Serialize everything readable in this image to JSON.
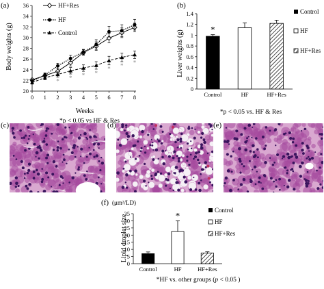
{
  "panels": {
    "a": "(a)",
    "b": "(b)",
    "c": "(c)",
    "d": "(d)",
    "e": "(e)",
    "f": "(f)"
  },
  "chart_data": [
    {
      "id": "a",
      "type": "line",
      "xlabel": "Weeks",
      "ylabel": "Body weights (g)",
      "x": [
        0,
        1,
        2,
        3,
        4,
        5,
        6,
        7,
        8
      ],
      "xlim": [
        0,
        8
      ],
      "ylim": [
        20,
        36
      ],
      "yticks": [
        20,
        22,
        24,
        26,
        28,
        30,
        32,
        34,
        36
      ],
      "series": [
        {
          "name": "HF+Res",
          "marker": "diamond-open",
          "line": "solid",
          "values": [
            22.1,
            22.9,
            23.7,
            25.3,
            27.2,
            28.4,
            29.9,
            30.9,
            31.9
          ],
          "errors": [
            0.3,
            0.4,
            0.5,
            0.6,
            0.5,
            0.8,
            0.9,
            0.9,
            0.8
          ]
        },
        {
          "name": "HF",
          "marker": "circle-filled",
          "line": "dotted",
          "values": [
            21.9,
            23.0,
            24.7,
            26.1,
            27.3,
            28.7,
            31.1,
            31.3,
            32.4
          ],
          "errors": [
            0.3,
            0.4,
            0.5,
            0.6,
            0.5,
            0.9,
            1.0,
            1.1,
            1.0
          ]
        },
        {
          "name": "Control",
          "marker": "triangle-filled",
          "line": "dashed",
          "values": [
            21.6,
            22.5,
            23.1,
            23.8,
            24.3,
            24.8,
            25.7,
            26.3,
            26.8
          ],
          "errors": [
            0.3,
            0.4,
            0.5,
            0.6,
            0.6,
            0.7,
            0.8,
            0.8,
            0.7
          ]
        }
      ],
      "significance_marks": {
        "symbol": "*",
        "weeks": [
          2,
          3,
          4,
          5,
          6,
          7,
          8
        ]
      },
      "footnote": "*p < 0.05 vs HF & Res"
    },
    {
      "id": "b",
      "type": "bar",
      "ylabel": "Liver weights (g)",
      "categories": [
        "Control",
        "HF",
        "HF+Res"
      ],
      "values": [
        0.98,
        1.14,
        1.22
      ],
      "errors": [
        0.03,
        0.09,
        0.06
      ],
      "ylim": [
        0,
        1.4
      ],
      "yticks": [
        "0",
        "0.2",
        "0.4",
        "0.6",
        "0.8",
        "1",
        "1.2",
        "1.4"
      ],
      "fills": [
        "solid-black",
        "white",
        "hatched"
      ],
      "legend": [
        "Control",
        "HF",
        "HF+Res"
      ],
      "significance": {
        "category": "Control",
        "symbol": "*"
      },
      "footnote": "*p < 0.05 vs.  HF & Res"
    },
    {
      "id": "f",
      "type": "bar",
      "ylabel": "Lipid droplet size",
      "unit": "(μm²/LD)",
      "categories": [
        "Control",
        "HF",
        "HF+Res"
      ],
      "values": [
        7.0,
        22.5,
        7.5
      ],
      "errors": [
        1.2,
        7.5,
        0.8
      ],
      "ylim": [
        0,
        35
      ],
      "yticks": [
        "0",
        "5",
        "10",
        "15",
        "20",
        "25",
        "30",
        "35"
      ],
      "fills": [
        "solid-black",
        "white",
        "hatched"
      ],
      "legend": [
        "Control",
        "HF",
        "HF+Res"
      ],
      "significance": {
        "category": "HF",
        "symbol": "*"
      },
      "footnote_parts": [
        "*HF vs. other groups (",
        "p",
        " < 0.05 )"
      ]
    }
  ],
  "histology": {
    "colors": {
      "background": "#d9a8d0",
      "nucleus": "#3a145e",
      "cytoplasm": "#a64a9e",
      "vacuole": "#f5f0f5",
      "vessel": "#ffffff",
      "blood": "#c23060"
    }
  }
}
